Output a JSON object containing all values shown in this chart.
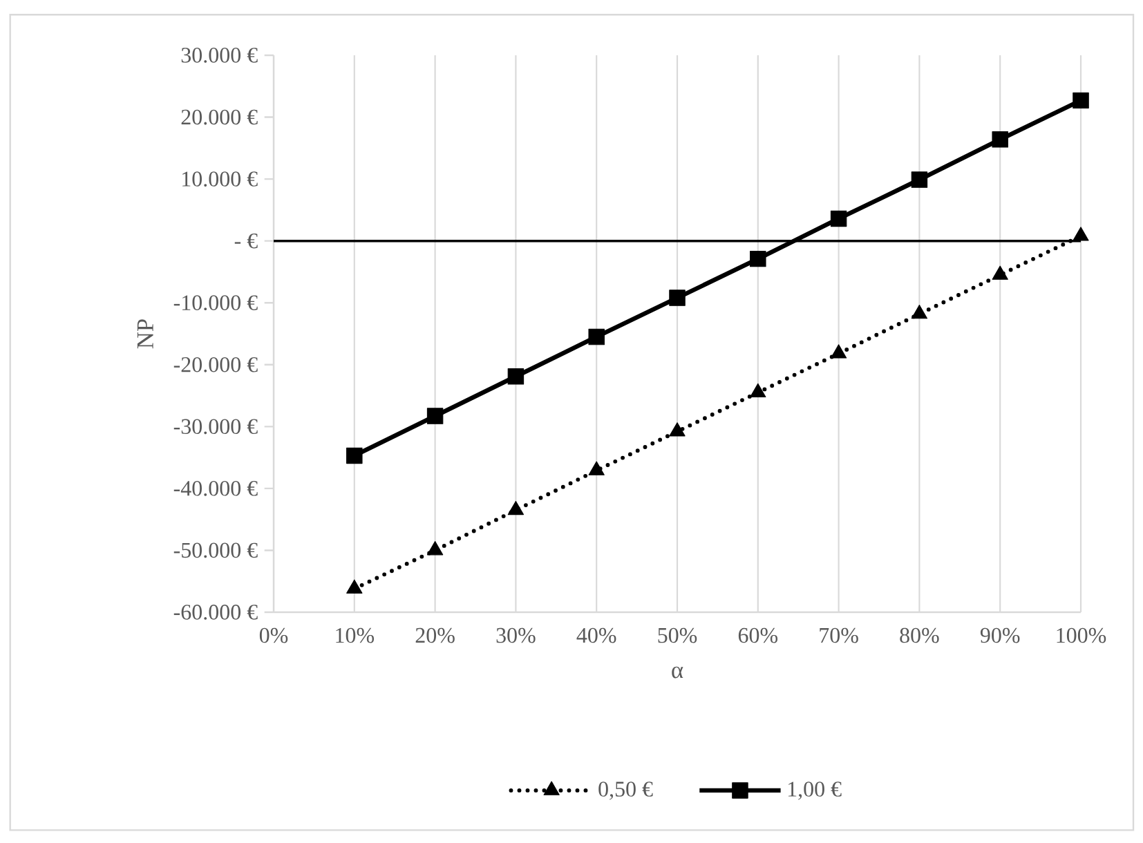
{
  "chart_data": {
    "type": "line",
    "xlabel": "α",
    "ylabel": "NP",
    "x": [
      10,
      20,
      30,
      40,
      50,
      60,
      70,
      80,
      90,
      100
    ],
    "series": [
      {
        "name": "0,50 €",
        "color": "#000000",
        "marker": "triangle",
        "line_style": "dotted",
        "values": [
          -56200,
          -50000,
          -43500,
          -37100,
          -30800,
          -24500,
          -18200,
          -11800,
          -5500,
          800
        ]
      },
      {
        "name": "1,00 €",
        "color": "#000000",
        "marker": "square",
        "line_style": "solid",
        "values": [
          -34700,
          -28300,
          -21900,
          -15500,
          -9200,
          -2900,
          3600,
          9900,
          16400,
          22700
        ]
      }
    ],
    "xlim": [
      0,
      100
    ],
    "xticks": [
      {
        "value": 0,
        "label": "0%"
      },
      {
        "value": 10,
        "label": "10%"
      },
      {
        "value": 20,
        "label": "20%"
      },
      {
        "value": 30,
        "label": "30%"
      },
      {
        "value": 40,
        "label": "40%"
      },
      {
        "value": 50,
        "label": "50%"
      },
      {
        "value": 60,
        "label": "60%"
      },
      {
        "value": 70,
        "label": "70%"
      },
      {
        "value": 80,
        "label": "80%"
      },
      {
        "value": 90,
        "label": "90%"
      },
      {
        "value": 100,
        "label": "100%"
      }
    ],
    "ylim": [
      -60000,
      30000
    ],
    "yticks": [
      {
        "value": -60000,
        "label": "-60.000 €"
      },
      {
        "value": -50000,
        "label": "-50.000 €"
      },
      {
        "value": -40000,
        "label": "-40.000 €"
      },
      {
        "value": -30000,
        "label": "-30.000 €"
      },
      {
        "value": -20000,
        "label": "-20.000 €"
      },
      {
        "value": -10000,
        "label": "-10.000 €"
      },
      {
        "value": 0,
        "label": "-   €"
      },
      {
        "value": 10000,
        "label": "10.000 €"
      },
      {
        "value": 20000,
        "label": "20.000 €"
      },
      {
        "value": 30000,
        "label": "30.000 €"
      }
    ],
    "ref_lines": [
      {
        "axis": "y",
        "value": 0,
        "color": "#000000"
      }
    ],
    "grid": "x",
    "legend": "bottom"
  }
}
